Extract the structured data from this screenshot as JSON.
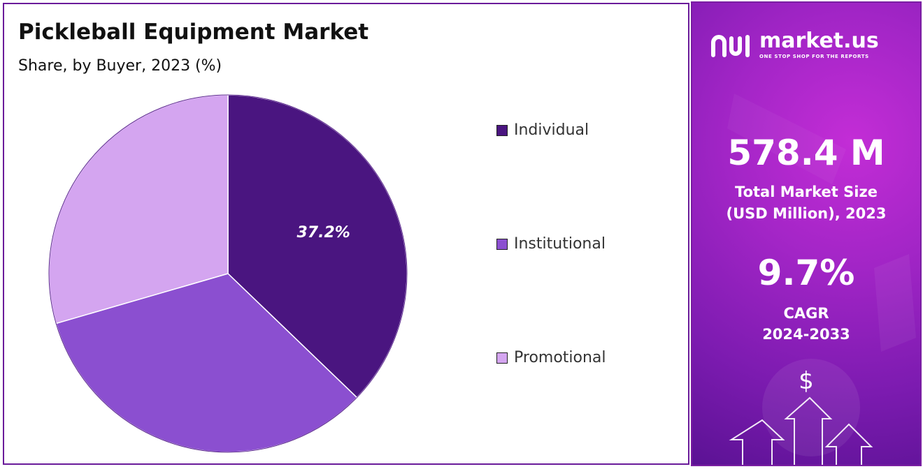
{
  "header": {
    "title": "Pickleball Equipment Market",
    "subtitle": "Share, by Buyer, 2023 (%)"
  },
  "chart_data": {
    "type": "pie",
    "title": "Pickleball Equipment Market",
    "subtitle": "Share, by Buyer, 2023 (%)",
    "categories": [
      "Individual",
      "Institutional",
      "Promotional"
    ],
    "values": [
      37.2,
      33.3,
      29.5
    ],
    "data_labels": [
      "37.2%",
      "",
      ""
    ],
    "colors": [
      "#4a1580",
      "#8b4fd0",
      "#d4a5f0"
    ],
    "legend_position": "right"
  },
  "legend": {
    "items": [
      {
        "label": "Individual",
        "color": "#4a1580"
      },
      {
        "label": "Institutional",
        "color": "#8b4fd0"
      },
      {
        "label": "Promotional",
        "color": "#d4a5f0"
      }
    ]
  },
  "brand": {
    "name": "market.us",
    "tagline": "ONE STOP SHOP FOR THE REPORTS"
  },
  "stats": {
    "market_size_value": "578.4 M",
    "market_size_caption_line1": "Total Market Size",
    "market_size_caption_line2": "(USD Million), 2023",
    "cagr_value": "9.7%",
    "cagr_caption_line1": "CAGR",
    "cagr_caption_line2": "2024-2033"
  },
  "decor": {
    "currency_symbol": "$"
  }
}
